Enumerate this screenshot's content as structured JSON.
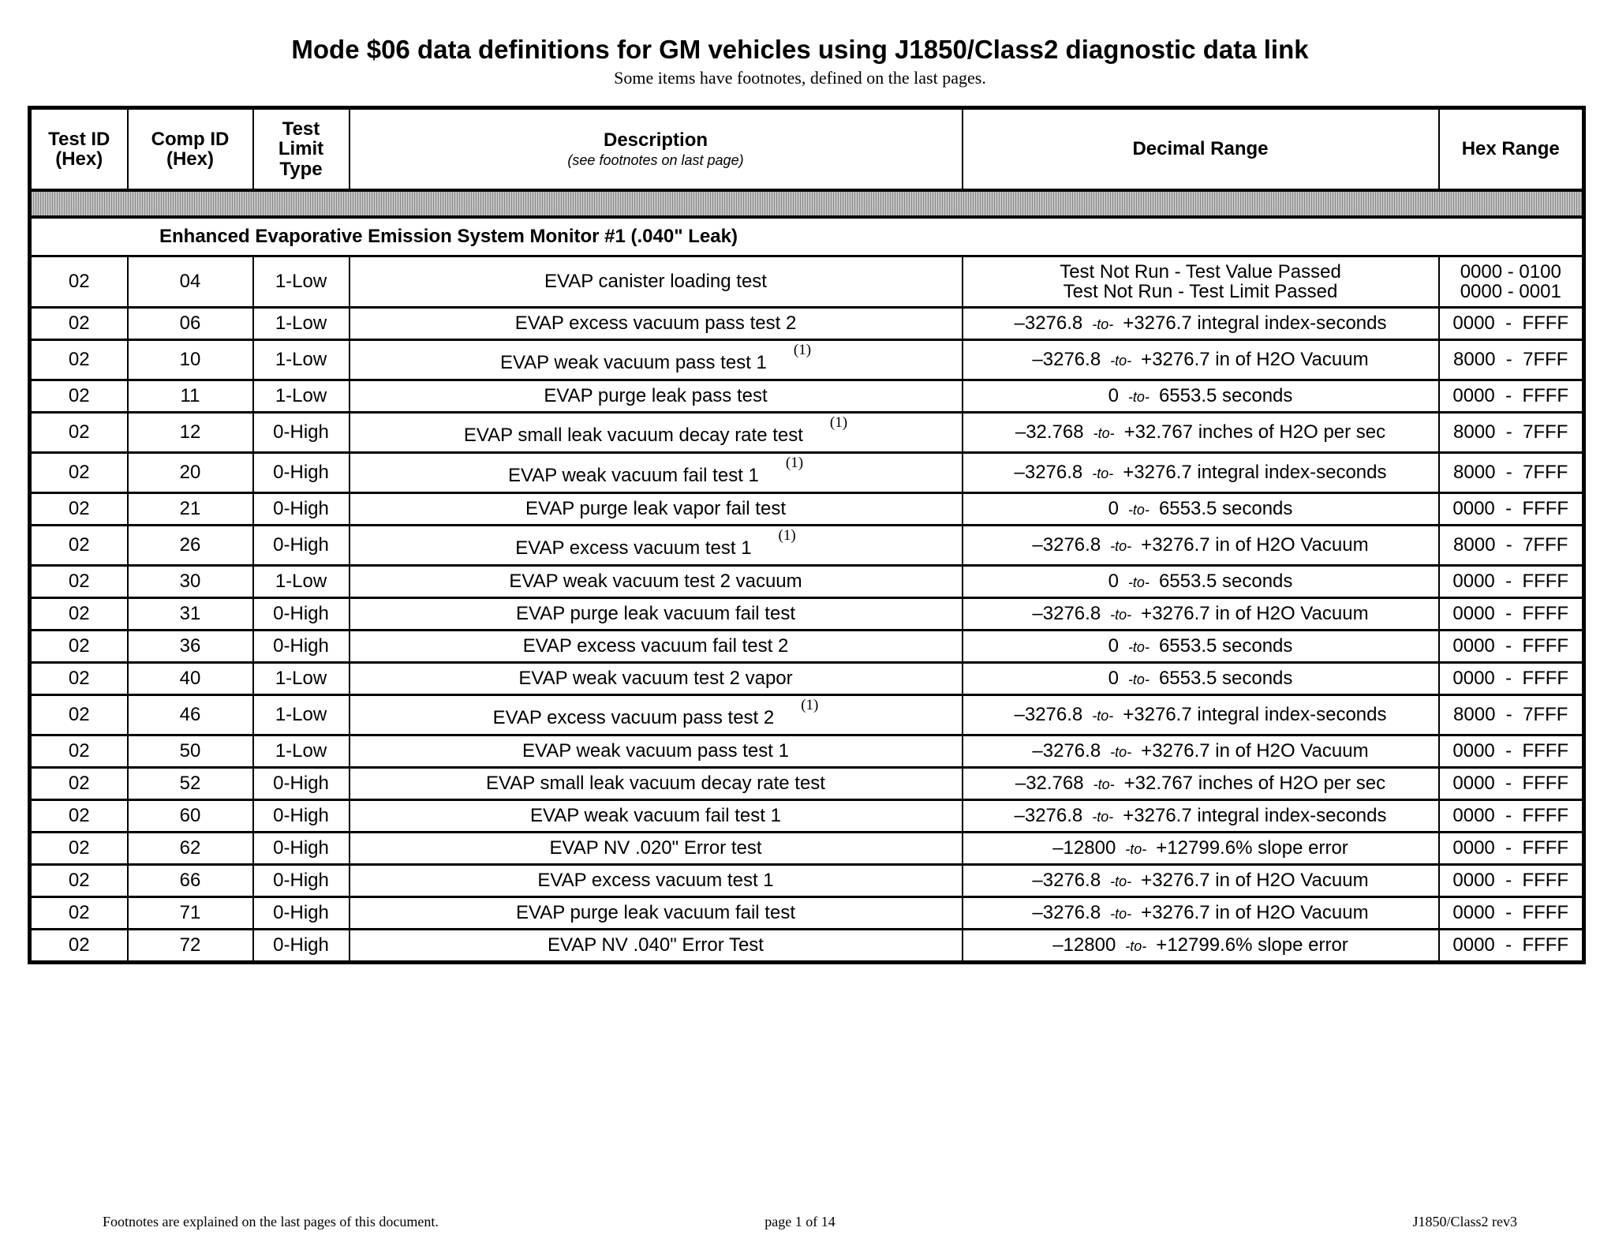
{
  "header": {
    "title": "Mode $06 data definitions for GM vehicles using J1850/Class2  diagnostic data link",
    "subtitle": "Some items have footnotes, defined on the last pages."
  },
  "table": {
    "columns": [
      {
        "line1": "Test ID",
        "line2": "(Hex)"
      },
      {
        "line1": "Comp ID",
        "line2": "(Hex)"
      },
      {
        "line1": "Test",
        "line2": "Limit",
        "line3": "Type"
      },
      {
        "line1": "Description",
        "note": "(see footnotes on last page)"
      },
      {
        "line1": "Decimal Range"
      },
      {
        "line1": "Hex Range"
      }
    ],
    "section_title": "Enhanced Evaporative Emission System Monitor #1 (.040\" Leak)",
    "first_row": {
      "test_id": "02",
      "comp_id": "04",
      "limit": "1-Low",
      "description": "EVAP canister loading test",
      "decimal_line1": "Test Not Run  -  Test Value Passed",
      "decimal_line2": "Test Not Run  -  Test Limit Passed",
      "hex_line1": "0000 - 0100",
      "hex_line2": "0000 - 0001"
    },
    "to_label": "-to-",
    "rows": [
      {
        "test_id": "02",
        "comp_id": "06",
        "limit": "1-Low",
        "description": "EVAP excess vacuum pass test 2",
        "footnote": "",
        "low": "–3276.8",
        "high": "+3276.7 integral index-seconds",
        "hex": "0000  -  FFFF"
      },
      {
        "test_id": "02",
        "comp_id": "10",
        "limit": "1-Low",
        "description": "EVAP weak vacuum pass test 1",
        "footnote": "(1)",
        "low": "–3276.8",
        "high": "+3276.7 in of H2O Vacuum",
        "hex": "8000  -  7FFF"
      },
      {
        "test_id": "02",
        "comp_id": "11",
        "limit": "1-Low",
        "description": "EVAP purge leak pass test",
        "footnote": "",
        "low": "0",
        "high": "6553.5 seconds",
        "hex": "0000  -  FFFF"
      },
      {
        "test_id": "02",
        "comp_id": "12",
        "limit": "0-High",
        "description": "EVAP small leak vacuum decay rate test",
        "footnote": "(1)",
        "low": "–32.768",
        "high": "+32.767 inches of H2O per sec",
        "hex": "8000  -  7FFF"
      },
      {
        "test_id": "02",
        "comp_id": "20",
        "limit": "0-High",
        "description": "EVAP weak vacuum fail test 1",
        "footnote": "(1)",
        "low": "–3276.8",
        "high": "+3276.7 integral index-seconds",
        "hex": "8000  -  7FFF"
      },
      {
        "test_id": "02",
        "comp_id": "21",
        "limit": "0-High",
        "description": "EVAP purge leak vapor fail test",
        "footnote": "",
        "low": "0",
        "high": "6553.5 seconds",
        "hex": "0000  -  FFFF"
      },
      {
        "test_id": "02",
        "comp_id": "26",
        "limit": "0-High",
        "description": "EVAP excess vacuum test 1",
        "footnote": "(1)",
        "low": "–3276.8",
        "high": "+3276.7 in of H2O Vacuum",
        "hex": "8000  -  7FFF"
      },
      {
        "test_id": "02",
        "comp_id": "30",
        "limit": "1-Low",
        "description": "EVAP weak vacuum test 2 vacuum",
        "footnote": "",
        "low": "0",
        "high": "6553.5 seconds",
        "hex": "0000  -  FFFF"
      },
      {
        "test_id": "02",
        "comp_id": "31",
        "limit": "0-High",
        "description": "EVAP purge leak vacuum fail test",
        "footnote": "",
        "low": "–3276.8",
        "high": "+3276.7 in of H2O Vacuum",
        "hex": "0000  -  FFFF"
      },
      {
        "test_id": "02",
        "comp_id": "36",
        "limit": "0-High",
        "description": "EVAP excess vacuum fail test 2",
        "footnote": "",
        "low": "0",
        "high": "6553.5 seconds",
        "hex": "0000  -  FFFF"
      },
      {
        "test_id": "02",
        "comp_id": "40",
        "limit": "1-Low",
        "description": "EVAP weak vacuum test 2 vapor",
        "footnote": "",
        "low": "0",
        "high": "6553.5 seconds",
        "hex": "0000  -  FFFF"
      },
      {
        "test_id": "02",
        "comp_id": "46",
        "limit": "1-Low",
        "description": "EVAP excess vacuum pass test 2",
        "footnote": "(1)",
        "low": "–3276.8",
        "high": "+3276.7 integral index-seconds",
        "hex": "8000  -  7FFF"
      },
      {
        "test_id": "02",
        "comp_id": "50",
        "limit": "1-Low",
        "description": "EVAP weak vacuum pass test 1",
        "footnote": "",
        "low": "–3276.8",
        "high": "+3276.7 in of H2O Vacuum",
        "hex": "0000  -  FFFF"
      },
      {
        "test_id": "02",
        "comp_id": "52",
        "limit": "0-High",
        "description": "EVAP small leak vacuum decay rate test",
        "footnote": "",
        "low": "–32.768",
        "high": "+32.767 inches of H2O per sec",
        "hex": "0000  -  FFFF"
      },
      {
        "test_id": "02",
        "comp_id": "60",
        "limit": "0-High",
        "description": "EVAP weak vacuum fail test 1",
        "footnote": "",
        "low": "–3276.8",
        "high": "+3276.7 integral index-seconds",
        "hex": "0000  -  FFFF"
      },
      {
        "test_id": "02",
        "comp_id": "62",
        "limit": "0-High",
        "description": "EVAP NV .020\" Error test",
        "footnote": "",
        "low": "–12800",
        "high": "+12799.6% slope error",
        "hex": "0000  -  FFFF"
      },
      {
        "test_id": "02",
        "comp_id": "66",
        "limit": "0-High",
        "description": "EVAP excess vacuum test 1",
        "footnote": "",
        "low": "–3276.8",
        "high": "+3276.7 in of H2O Vacuum",
        "hex": "0000  -  FFFF"
      },
      {
        "test_id": "02",
        "comp_id": "71",
        "limit": "0-High",
        "description": "EVAP purge leak vacuum fail test",
        "footnote": "",
        "low": "–3276.8",
        "high": "+3276.7 in of H2O Vacuum",
        "hex": "0000  -  FFFF"
      },
      {
        "test_id": "02",
        "comp_id": "72",
        "limit": "0-High",
        "description": "EVAP NV .040\" Error Test",
        "footnote": "",
        "low": "–12800",
        "high": "+12799.6% slope error",
        "hex": "0000  -  FFFF"
      }
    ]
  },
  "footer": {
    "left": "Footnotes are explained on the last pages of this document.",
    "center": "page 1 of 14",
    "right": "J1850/Class2 rev3"
  }
}
